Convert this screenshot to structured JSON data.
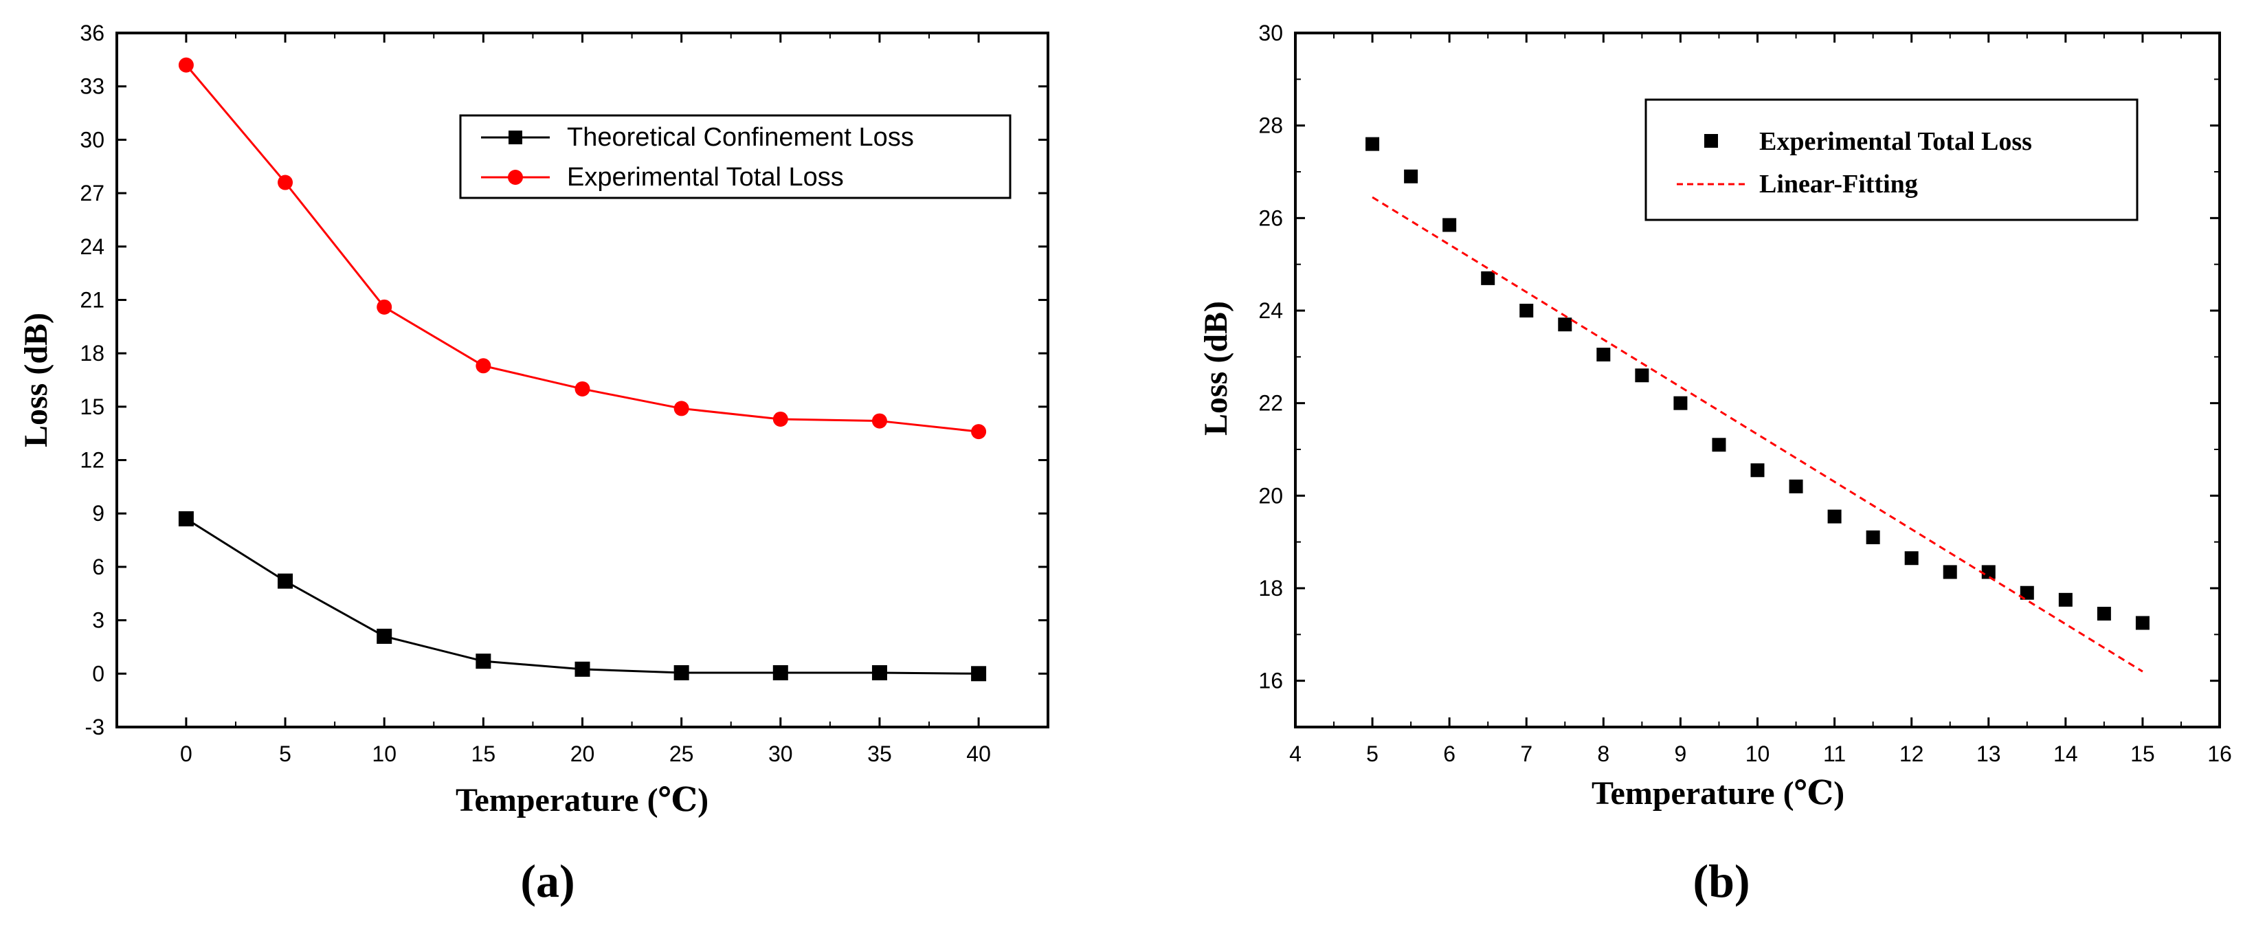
{
  "chart_data": [
    {
      "type": "line",
      "panel_label": "(a)",
      "xlabel": "Temperature (℃)",
      "ylabel": "Loss (dB)",
      "xlim": [
        -3.5,
        43.5
      ],
      "ylim": [
        -3,
        36
      ],
      "x_ticks": [
        0,
        5,
        10,
        15,
        20,
        25,
        30,
        35,
        40
      ],
      "y_ticks": [
        -3,
        0,
        3,
        6,
        9,
        12,
        15,
        18,
        21,
        24,
        27,
        30,
        33,
        36
      ],
      "grid": false,
      "legend_position": "top-right",
      "series": [
        {
          "name": "Theoretical Confinement Loss",
          "color": "#000000",
          "marker": "square",
          "x": [
            0,
            5,
            10,
            15,
            20,
            25,
            30,
            35,
            40
          ],
          "y": [
            8.7,
            5.2,
            2.1,
            0.7,
            0.25,
            0.05,
            0.05,
            0.05,
            0.0
          ]
        },
        {
          "name": "Experimental Total Loss",
          "color": "#ff0000",
          "marker": "circle",
          "x": [
            0,
            5,
            10,
            15,
            20,
            25,
            30,
            35,
            40
          ],
          "y": [
            34.2,
            27.6,
            20.6,
            17.3,
            16.0,
            14.9,
            14.3,
            14.2,
            13.6
          ]
        }
      ]
    },
    {
      "type": "scatter",
      "panel_label": "(b)",
      "xlabel": "Temperature (℃)",
      "ylabel": "Loss (dB)",
      "xlim": [
        4,
        16
      ],
      "ylim": [
        15,
        30
      ],
      "x_ticks": [
        4,
        5,
        6,
        7,
        8,
        9,
        10,
        11,
        12,
        13,
        14,
        15,
        16
      ],
      "y_ticks": [
        16,
        18,
        20,
        22,
        24,
        26,
        28,
        30
      ],
      "grid": false,
      "legend_position": "top-right",
      "series": [
        {
          "name": "Experimental Total Loss",
          "color": "#000000",
          "marker": "square",
          "x": [
            5,
            5.5,
            6,
            6.5,
            7,
            7.5,
            8,
            8.5,
            9,
            9.5,
            10,
            10.5,
            11,
            11.5,
            12,
            12.5,
            13,
            13.5,
            14,
            14.5,
            15
          ],
          "y": [
            27.6,
            26.9,
            25.85,
            24.7,
            24.0,
            23.7,
            23.05,
            22.6,
            22.0,
            21.1,
            20.55,
            20.2,
            19.55,
            19.1,
            18.65,
            18.35,
            18.35,
            17.9,
            17.75,
            17.45,
            17.25
          ]
        },
        {
          "name": "Linear-Fitting",
          "color": "#ff0000",
          "line_style": "dashed",
          "x": [
            5,
            15
          ],
          "y": [
            26.45,
            16.2
          ]
        }
      ]
    }
  ]
}
